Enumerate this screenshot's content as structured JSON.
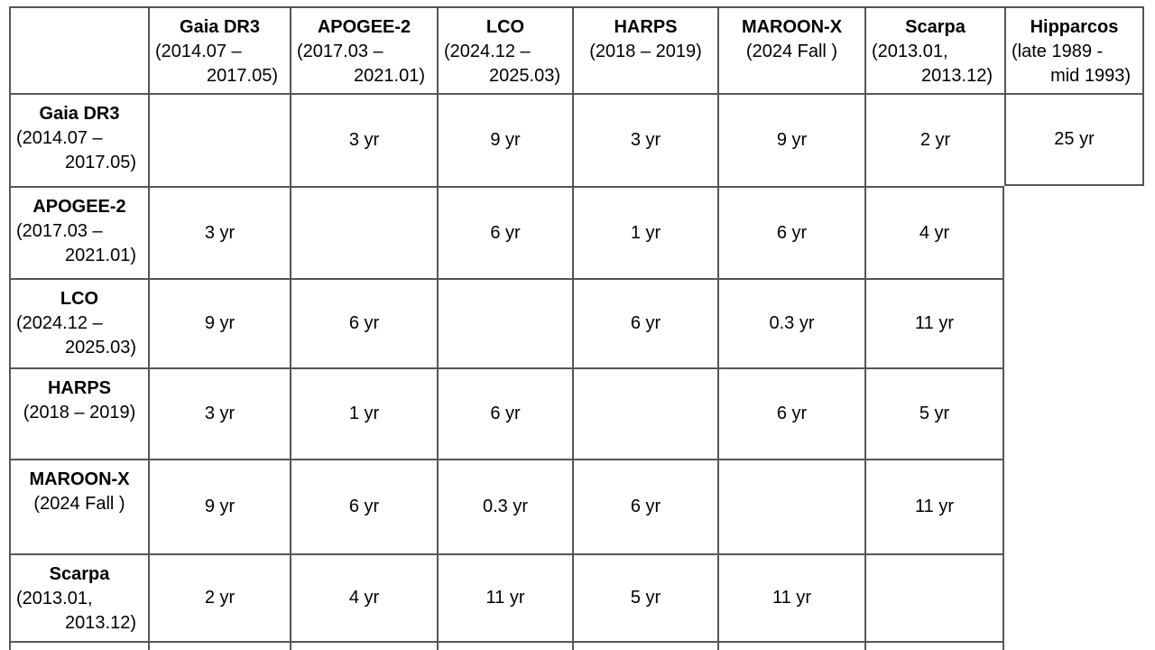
{
  "table": {
    "title_semantic": "survey-epoch-difference-matrix",
    "columns": [
      {
        "name": "Gaia DR3",
        "dates": [
          "(2014.07 –",
          "2017.05)"
        ]
      },
      {
        "name": "APOGEE-2",
        "dates": [
          "(2017.03 –",
          "2021.01)"
        ]
      },
      {
        "name": "LCO",
        "dates": [
          "(2024.12 –",
          "2025.03)"
        ]
      },
      {
        "name": "HARPS",
        "dates": [
          "(2018 – 2019)"
        ]
      },
      {
        "name": "MAROON-X",
        "dates": [
          "(2024 Fall )"
        ]
      },
      {
        "name": "Scarpa",
        "dates": [
          "(2013.01,",
          "2013.12)"
        ]
      },
      {
        "name": "Hipparcos",
        "dates": [
          "(late 1989 -",
          "mid 1993)"
        ]
      }
    ],
    "rows": [
      {
        "name": "Gaia DR3",
        "dates": [
          "(2014.07 –",
          "2017.05)"
        ]
      },
      {
        "name": "APOGEE-2",
        "dates": [
          "(2017.03 –",
          "2021.01)"
        ]
      },
      {
        "name": "LCO",
        "dates": [
          "(2024.12 –",
          "2025.03)"
        ]
      },
      {
        "name": "HARPS",
        "dates": [
          "(2018 – 2019)"
        ]
      },
      {
        "name": "MAROON-X",
        "dates": [
          "(2024 Fall )"
        ]
      },
      {
        "name": "Scarpa",
        "dates": [
          "(2013.01,",
          "2013.12)"
        ]
      }
    ],
    "values": [
      [
        "",
        "3 yr",
        "9 yr",
        "3 yr",
        "9 yr",
        "2 yr",
        "25 yr"
      ],
      [
        "3 yr",
        "",
        "6 yr",
        "1 yr",
        "6 yr",
        "4 yr"
      ],
      [
        "9 yr",
        "6 yr",
        "",
        "6 yr",
        "0.3 yr",
        "11 yr"
      ],
      [
        "3 yr",
        "1 yr",
        "6 yr",
        "",
        "6 yr",
        "5 yr"
      ],
      [
        "9 yr",
        "6 yr",
        "0.3 yr",
        "6 yr",
        "",
        "11 yr"
      ],
      [
        "2 yr",
        "4 yr",
        "11 yr",
        "5 yr",
        "11 yr",
        ""
      ]
    ]
  },
  "colors": {
    "border": "#565656",
    "text": "#000000",
    "background": "#ffffff"
  }
}
